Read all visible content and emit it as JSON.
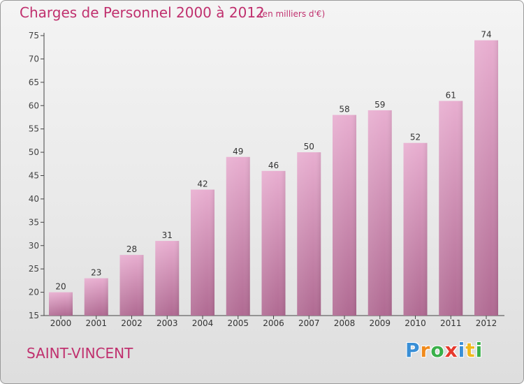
{
  "header": {
    "title": "Charges de Personnel 2000 à 2012",
    "subtitle": "(en milliers d'€)"
  },
  "footer": {
    "city": "SAINT-VINCENT",
    "logo_text": "Proxiti",
    "logo_letters": [
      {
        "ch": "P",
        "color": "#3a8fd6"
      },
      {
        "ch": "r",
        "color": "#f08a1c"
      },
      {
        "ch": "o",
        "color": "#3ab04a"
      },
      {
        "ch": "x",
        "color": "#e63a2e"
      },
      {
        "ch": "i",
        "color": "#3a8fd6"
      },
      {
        "ch": "t",
        "color": "#f0b81c"
      },
      {
        "ch": "i",
        "color": "#3ab04a"
      }
    ]
  },
  "colors": {
    "accent": "#c0306e",
    "bar_top": "#e8aed0",
    "bar_bottom": "#b06a92"
  },
  "chart_data": {
    "type": "bar",
    "title": "Charges de Personnel 2000 à 2012",
    "subtitle": "(en milliers d'€)",
    "categories": [
      "2000",
      "2001",
      "2002",
      "2003",
      "2004",
      "2005",
      "2006",
      "2007",
      "2008",
      "2009",
      "2010",
      "2011",
      "2012"
    ],
    "values": [
      20,
      23,
      28,
      31,
      42,
      49,
      46,
      50,
      58,
      59,
      52,
      61,
      74
    ],
    "ylim": [
      15,
      75
    ],
    "yticks": [
      15,
      20,
      25,
      30,
      35,
      40,
      45,
      50,
      55,
      60,
      65,
      70,
      75
    ],
    "grid": false,
    "legend": "none",
    "data_labels": true
  }
}
